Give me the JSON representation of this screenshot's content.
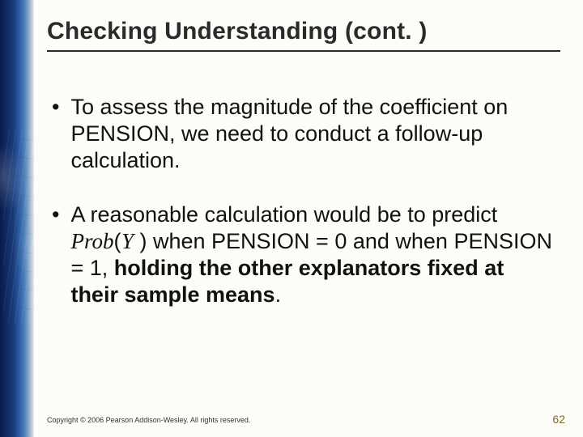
{
  "title": "Checking Understanding (cont. )",
  "bullets": [
    {
      "prefix": "To assess the magnitude of the coefficient on PENSION, we need to conduct a follow-up calculation.",
      "hasProb": false
    },
    {
      "prefix": "A reasonable calculation would be to predict ",
      "probLabel": "Prob",
      "probArg": "Y",
      "mid": " when PENSION = 0 and when PENSION = 1, ",
      "boldTail": "holding the other explanators fixed at their sample means",
      "trailingPunct": ".",
      "hasProb": true
    }
  ],
  "footer": "Copyright © 2006 Pearson Addison-Wesley. All rights reserved.",
  "pageNumber": "62",
  "colors": {
    "title": "#2a2a2a",
    "rule": "#2a2a2a",
    "body": "#111111",
    "pagenum": "#7a6a2a",
    "background": "#fdfcf8"
  },
  "fonts": {
    "title_size_pt": 22,
    "body_size_pt": 20,
    "footer_size_pt": 7,
    "pagenum_size_pt": 10
  }
}
